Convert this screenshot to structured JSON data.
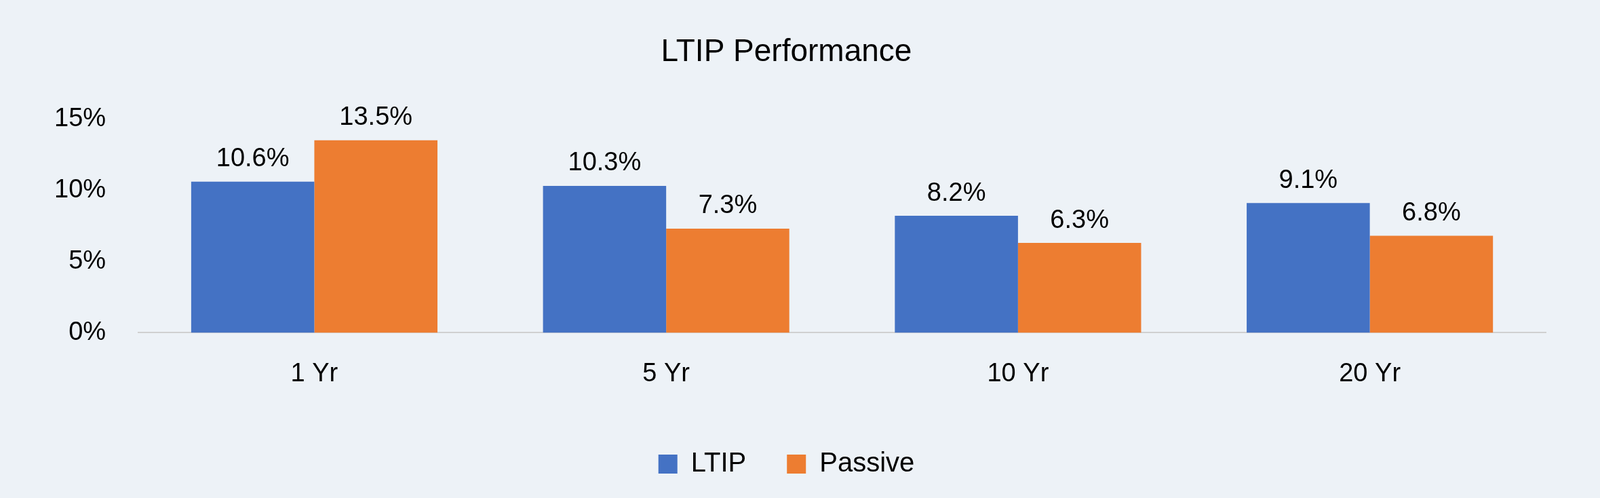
{
  "chart_data": {
    "type": "bar",
    "title": "LTIP Performance",
    "categories": [
      "1 Yr",
      "5 Yr",
      "10 Yr",
      "20 Yr"
    ],
    "series": [
      {
        "name": "LTIP",
        "color": "#4472c4",
        "values": [
          10.6,
          10.3,
          8.2,
          9.1
        ],
        "value_labels": [
          "10.6%",
          "10.3%",
          "8.2%",
          "9.1%"
        ]
      },
      {
        "name": "Passive",
        "color": "#ed7d31",
        "values": [
          13.5,
          7.3,
          6.3,
          6.8
        ],
        "value_labels": [
          "13.5%",
          "7.3%",
          "6.3%",
          "6.8%"
        ]
      }
    ],
    "ylim": [
      0,
      15
    ],
    "yticks": [
      {
        "value": 0,
        "label": "0%"
      },
      {
        "value": 5,
        "label": "5%"
      },
      {
        "value": 10,
        "label": "10%"
      },
      {
        "value": 15,
        "label": "15%"
      }
    ],
    "grid": false,
    "legend": "bottom",
    "data_labels": true
  }
}
